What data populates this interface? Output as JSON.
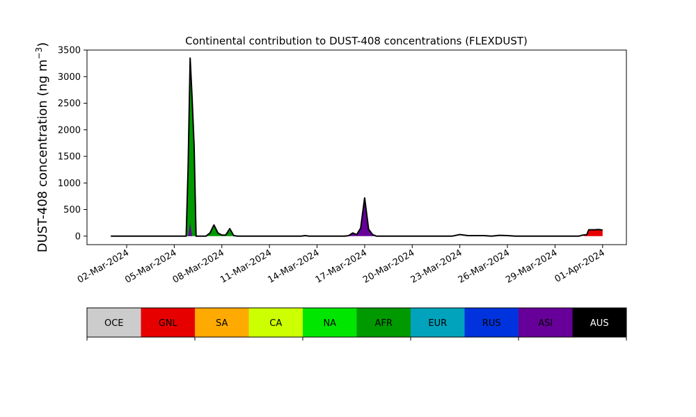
{
  "chart_data": {
    "type": "area",
    "title": "Continental contribution to DUST-408 concentrations (FLEXDUST)",
    "ylabel": "DUST-408 concentration (ng m",
    "ylabel_sup": "−3",
    "ylabel_close": ")",
    "xlabel": "",
    "xlim": [
      "2024-02-28T12:00",
      "2024-04-02T12:00"
    ],
    "ylim": [
      -160,
      3500
    ],
    "yticks": [
      0,
      500,
      1000,
      1500,
      2000,
      2500,
      3000,
      3500
    ],
    "xticks": [
      "02-Mar-2024",
      "05-Mar-2024",
      "08-Mar-2024",
      "11-Mar-2024",
      "14-Mar-2024",
      "17-Mar-2024",
      "20-Mar-2024",
      "23-Mar-2024",
      "26-Mar-2024",
      "29-Mar-2024",
      "01-Apr-2024"
    ],
    "grid": false,
    "legend": "colorbar-below",
    "colorbar": [
      {
        "label": "OCE",
        "color": "#cccccc",
        "text_color": "#000000"
      },
      {
        "label": "GNL",
        "color": "#e60000",
        "text_color": "#000000"
      },
      {
        "label": "SA",
        "color": "#ffaa00",
        "text_color": "#000000"
      },
      {
        "label": "CA",
        "color": "#ccff00",
        "text_color": "#000000"
      },
      {
        "label": "NA",
        "color": "#00e600",
        "text_color": "#000000"
      },
      {
        "label": "AFR",
        "color": "#009900",
        "text_color": "#000000"
      },
      {
        "label": "EUR",
        "color": "#00a3bb",
        "text_color": "#000000"
      },
      {
        "label": "RUS",
        "color": "#0033dd",
        "text_color": "#000000"
      },
      {
        "label": "ASI",
        "color": "#660099",
        "text_color": "#000000"
      },
      {
        "label": "AUS",
        "color": "#000000",
        "text_color": "#ffffff"
      }
    ],
    "series": [
      {
        "region": "AFR",
        "color": "#009900",
        "points": [
          [
            "2024-03-01T00:00",
            0
          ],
          [
            "2024-03-05T18:00",
            0
          ],
          [
            "2024-03-05T21:00",
            1200
          ],
          [
            "2024-03-06T00:00",
            3000
          ],
          [
            "2024-03-06T03:00",
            2500
          ],
          [
            "2024-03-06T06:00",
            1600
          ],
          [
            "2024-03-06T09:00",
            0
          ],
          [
            "2024-03-07T00:00",
            0
          ],
          [
            "2024-03-07T06:00",
            60
          ],
          [
            "2024-03-07T12:00",
            190
          ],
          [
            "2024-03-07T18:00",
            60
          ],
          [
            "2024-03-08T00:00",
            20
          ],
          [
            "2024-03-08T06:00",
            20
          ],
          [
            "2024-03-08T12:00",
            110
          ],
          [
            "2024-03-08T18:00",
            10
          ],
          [
            "2024-03-09T00:00",
            0
          ],
          [
            "2024-04-01T00:00",
            0
          ]
        ]
      },
      {
        "region": "ASI",
        "color": "#660099",
        "points": [
          [
            "2024-03-01T00:00",
            0
          ],
          [
            "2024-03-05T21:00",
            0
          ],
          [
            "2024-03-06T00:00",
            250
          ],
          [
            "2024-03-06T03:00",
            0
          ],
          [
            "2024-03-16T00:00",
            0
          ],
          [
            "2024-03-16T06:00",
            50
          ],
          [
            "2024-03-16T12:00",
            20
          ],
          [
            "2024-03-16T18:00",
            150
          ],
          [
            "2024-03-17T00:00",
            650
          ],
          [
            "2024-03-17T06:00",
            120
          ],
          [
            "2024-03-17T12:00",
            20
          ],
          [
            "2024-03-17T18:00",
            0
          ],
          [
            "2024-04-01T00:00",
            0
          ]
        ]
      },
      {
        "region": "GNL",
        "color": "#e60000",
        "points": [
          [
            "2024-03-01T00:00",
            0
          ],
          [
            "2024-03-30T18:00",
            0
          ],
          [
            "2024-03-31T00:00",
            20
          ],
          [
            "2024-03-31T03:00",
            110
          ],
          [
            "2024-03-31T12:00",
            115
          ],
          [
            "2024-03-31T18:00",
            120
          ],
          [
            "2024-04-01T00:00",
            110
          ]
        ]
      }
    ],
    "total": [
      [
        "2024-03-01T00:00",
        0
      ],
      [
        "2024-03-05T18:00",
        0
      ],
      [
        "2024-03-05T21:00",
        1300
      ],
      [
        "2024-03-06T00:00",
        3350
      ],
      [
        "2024-03-06T03:00",
        2600
      ],
      [
        "2024-03-06T06:00",
        1700
      ],
      [
        "2024-03-06T09:00",
        0
      ],
      [
        "2024-03-07T00:00",
        0
      ],
      [
        "2024-03-07T06:00",
        60
      ],
      [
        "2024-03-07T12:00",
        210
      ],
      [
        "2024-03-07T18:00",
        60
      ],
      [
        "2024-03-08T00:00",
        20
      ],
      [
        "2024-03-08T06:00",
        20
      ],
      [
        "2024-03-08T12:00",
        140
      ],
      [
        "2024-03-08T18:00",
        10
      ],
      [
        "2024-03-09T00:00",
        0
      ],
      [
        "2024-03-13T00:00",
        0
      ],
      [
        "2024-03-13T06:00",
        10
      ],
      [
        "2024-03-13T12:00",
        0
      ],
      [
        "2024-03-15T18:00",
        0
      ],
      [
        "2024-03-16T00:00",
        10
      ],
      [
        "2024-03-16T06:00",
        60
      ],
      [
        "2024-03-16T12:00",
        30
      ],
      [
        "2024-03-16T18:00",
        150
      ],
      [
        "2024-03-17T00:00",
        720
      ],
      [
        "2024-03-17T06:00",
        130
      ],
      [
        "2024-03-17T12:00",
        30
      ],
      [
        "2024-03-17T18:00",
        0
      ],
      [
        "2024-03-22T12:00",
        0
      ],
      [
        "2024-03-23T00:00",
        30
      ],
      [
        "2024-03-23T12:00",
        10
      ],
      [
        "2024-03-24T12:00",
        10
      ],
      [
        "2024-03-25T00:00",
        0
      ],
      [
        "2024-03-25T12:00",
        15
      ],
      [
        "2024-03-26T00:00",
        10
      ],
      [
        "2024-03-26T12:00",
        0
      ],
      [
        "2024-03-30T12:00",
        0
      ],
      [
        "2024-03-30T18:00",
        20
      ],
      [
        "2024-03-31T00:00",
        25
      ],
      [
        "2024-03-31T03:00",
        120
      ],
      [
        "2024-03-31T12:00",
        120
      ],
      [
        "2024-03-31T18:00",
        125
      ],
      [
        "2024-04-01T00:00",
        115
      ]
    ]
  }
}
